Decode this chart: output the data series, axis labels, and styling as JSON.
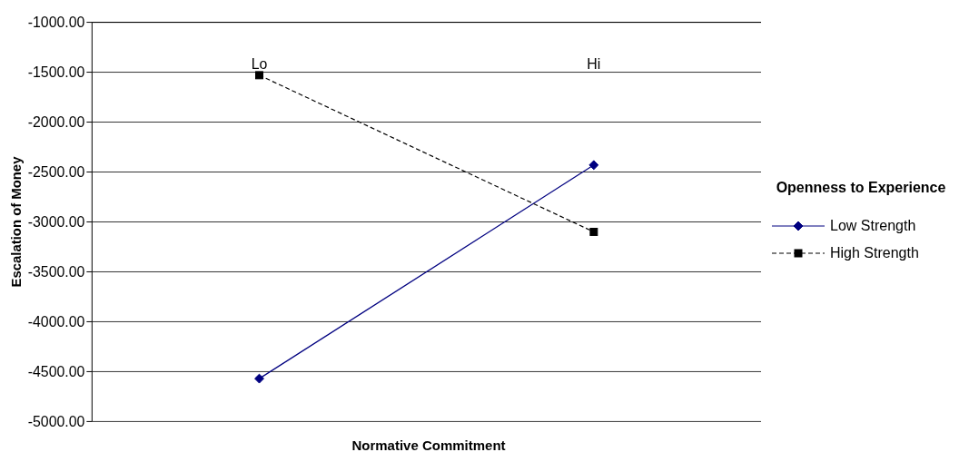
{
  "chart_data": {
    "type": "line",
    "xlabel": "Normative Commitment",
    "ylabel": "Escalation of Money",
    "legend_title": "Openness to Experience",
    "categories": [
      "Lo",
      "Hi"
    ],
    "series": [
      {
        "name": "Low Strength",
        "color": "#000080",
        "values": [
          -4570,
          -2430
        ],
        "marker": "diamond",
        "line_style": "solid"
      },
      {
        "name": "High Strength",
        "color": "#000000",
        "values": [
          -1530,
          -3100
        ],
        "marker": "square",
        "line_style": "dashed"
      }
    ],
    "ylim": [
      -5000,
      -1000
    ],
    "yticks": [
      {
        "value": -5000,
        "label": "-5000.00"
      },
      {
        "value": -4500,
        "label": "-4500.00"
      },
      {
        "value": -4000,
        "label": "-4000.00"
      },
      {
        "value": -3500,
        "label": "-3500.00"
      },
      {
        "value": -3000,
        "label": "-3000.00"
      },
      {
        "value": -2500,
        "label": "-2500.00"
      },
      {
        "value": -2000,
        "label": "-2000.00"
      },
      {
        "value": -1500,
        "label": "-1500.00"
      },
      {
        "value": -1000,
        "label": "-1000.00"
      }
    ],
    "grid": "y",
    "legend": "right"
  }
}
